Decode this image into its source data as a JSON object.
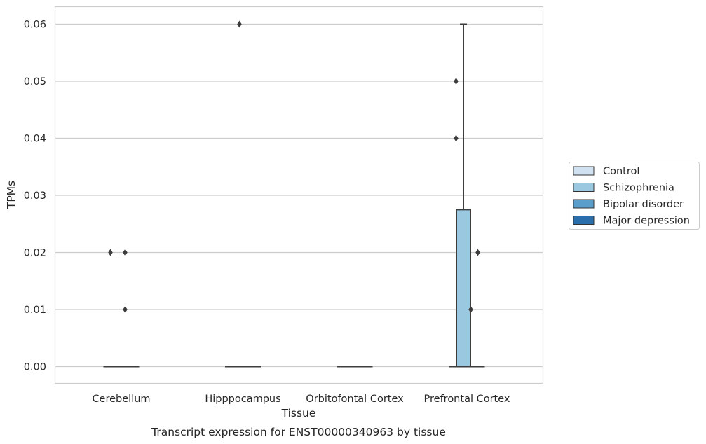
{
  "chart_data": {
    "type": "box",
    "title": "",
    "caption": "Transcript expression for ENST00000340963 by tissue",
    "xlabel": "Tissue",
    "ylabel": "TPMs",
    "ylim": [
      -0.003,
      0.063
    ],
    "yticks": [
      "0.00",
      "0.01",
      "0.02",
      "0.03",
      "0.04",
      "0.05",
      "0.06"
    ],
    "grid": true,
    "legend_position": "right",
    "categories": [
      "Cerebellum",
      "Hipppocampus",
      "Orbitofontal Cortex",
      "Prefrontal Cortex"
    ],
    "series": [
      {
        "name": "Control",
        "color": "#d0e1f2",
        "boxes": [
          {
            "q1": 0,
            "median": 0,
            "q3": 0,
            "whisker_low": 0,
            "whisker_high": 0,
            "outliers": [
              0.02
            ]
          },
          {
            "q1": 0,
            "median": 0,
            "q3": 0,
            "whisker_low": 0,
            "whisker_high": 0,
            "outliers": []
          },
          {
            "q1": 0,
            "median": 0,
            "q3": 0,
            "whisker_low": 0,
            "whisker_high": 0,
            "outliers": []
          },
          {
            "q1": 0,
            "median": 0,
            "q3": 0,
            "whisker_low": 0,
            "whisker_high": 0,
            "outliers": [
              0.05,
              0.04
            ]
          }
        ]
      },
      {
        "name": "Schizophrenia",
        "color": "#9ac8e0",
        "boxes": [
          {
            "q1": 0,
            "median": 0,
            "q3": 0,
            "whisker_low": 0,
            "whisker_high": 0,
            "outliers": []
          },
          {
            "q1": 0,
            "median": 0,
            "q3": 0,
            "whisker_low": 0,
            "whisker_high": 0,
            "outliers": [
              0.06
            ]
          },
          {
            "q1": 0,
            "median": 0,
            "q3": 0,
            "whisker_low": 0,
            "whisker_high": 0,
            "outliers": []
          },
          {
            "q1": 0,
            "median": 0,
            "q3": 0.0275,
            "whisker_low": 0,
            "whisker_high": 0.06,
            "outliers": []
          }
        ]
      },
      {
        "name": "Bipolar disorder",
        "color": "#5a9fcc",
        "boxes": [
          {
            "q1": 0,
            "median": 0,
            "q3": 0,
            "whisker_low": 0,
            "whisker_high": 0,
            "outliers": [
              0.02,
              0.01
            ]
          },
          {
            "q1": 0,
            "median": 0,
            "q3": 0,
            "whisker_low": 0,
            "whisker_high": 0,
            "outliers": []
          },
          {
            "q1": 0,
            "median": 0,
            "q3": 0,
            "whisker_low": 0,
            "whisker_high": 0,
            "outliers": []
          },
          {
            "q1": 0,
            "median": 0,
            "q3": 0,
            "whisker_low": 0,
            "whisker_high": 0,
            "outliers": [
              0.01
            ]
          }
        ]
      },
      {
        "name": "Major depression",
        "color": "#2a6fac",
        "boxes": [
          {
            "q1": 0,
            "median": 0,
            "q3": 0,
            "whisker_low": 0,
            "whisker_high": 0,
            "outliers": []
          },
          {
            "q1": 0,
            "median": 0,
            "q3": 0,
            "whisker_low": 0,
            "whisker_high": 0,
            "outliers": []
          },
          {
            "q1": 0,
            "median": 0,
            "q3": 0,
            "whisker_low": 0,
            "whisker_high": 0,
            "outliers": []
          },
          {
            "q1": 0,
            "median": 0,
            "q3": 0,
            "whisker_low": 0,
            "whisker_high": 0,
            "outliers": [
              0.02
            ]
          }
        ]
      }
    ]
  }
}
